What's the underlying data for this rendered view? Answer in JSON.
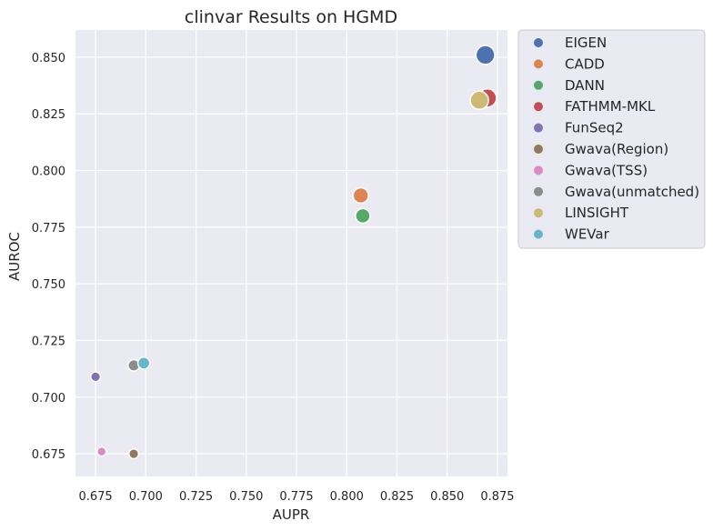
{
  "chart_data": {
    "type": "scatter",
    "title": "clinvar Results on HGMD",
    "xlabel": "AUPR",
    "ylabel": "AUROC",
    "xlim": [
      0.665,
      0.88
    ],
    "ylim": [
      0.665,
      0.862
    ],
    "xticks": [
      "0.675",
      "0.700",
      "0.725",
      "0.750",
      "0.775",
      "0.800",
      "0.825",
      "0.850",
      "0.875"
    ],
    "yticks": [
      "0.675",
      "0.700",
      "0.725",
      "0.750",
      "0.775",
      "0.800",
      "0.825",
      "0.850"
    ],
    "grid": true,
    "legend_position": "outside-right-top",
    "series": [
      {
        "name": "EIGEN",
        "color": "#4c72b0",
        "x": 0.869,
        "y": 0.851,
        "size": 3.0
      },
      {
        "name": "CADD",
        "color": "#dd8452",
        "x": 0.807,
        "y": 0.789,
        "size": 2.0
      },
      {
        "name": "DANN",
        "color": "#55a868",
        "x": 0.808,
        "y": 0.78,
        "size": 1.8
      },
      {
        "name": "FATHMM-MKL",
        "color": "#c44e52",
        "x": 0.87,
        "y": 0.832,
        "size": 2.8
      },
      {
        "name": "FunSeq2",
        "color": "#8172b3",
        "x": 0.675,
        "y": 0.709,
        "size": 0.8
      },
      {
        "name": "Gwava(Region)",
        "color": "#937860",
        "x": 0.694,
        "y": 0.675,
        "size": 0.8
      },
      {
        "name": "Gwava(TSS)",
        "color": "#da8bc3",
        "x": 0.678,
        "y": 0.676,
        "size": 0.7
      },
      {
        "name": "Gwava(unmatched)",
        "color": "#8c8c8c",
        "x": 0.694,
        "y": 0.714,
        "size": 1.1
      },
      {
        "name": "LINSIGHT",
        "color": "#ccb974",
        "x": 0.866,
        "y": 0.831,
        "size": 2.8
      },
      {
        "name": "WEVar",
        "color": "#64b5cd",
        "x": 0.699,
        "y": 0.715,
        "size": 1.2
      }
    ]
  }
}
